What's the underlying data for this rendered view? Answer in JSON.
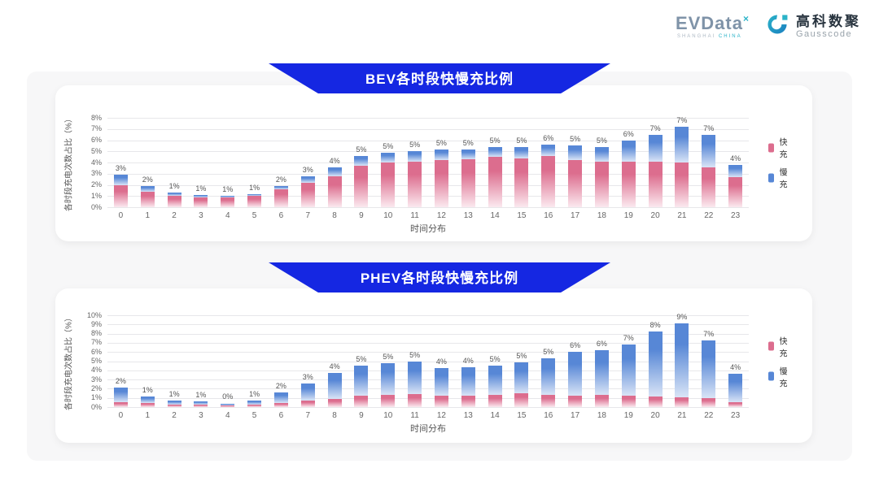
{
  "header": {
    "evdata": {
      "wordmark": "EVData",
      "sup": "×",
      "tagline_left": "SHANGHAI ",
      "tagline_right": "CHINA"
    },
    "gausscode": {
      "cn": "高科数聚",
      "en": "Gausscode"
    }
  },
  "colors": {
    "banner_blue": "#1527e2",
    "fast_pink": "#dc6d8e",
    "slow_blue": "#5787d6",
    "logo_teal": "#2bb3c8",
    "panel_gray": "#f7f7f8"
  },
  "chart_data": [
    {
      "type": "bar",
      "stacked": true,
      "title": "BEV各时段快慢充比例",
      "xlabel": "时间分布",
      "ylabel": "各时段充电次数占比（%）",
      "ylim": [
        0,
        8
      ],
      "ytick_step": 1,
      "grid": true,
      "legend_position": "right",
      "categories": [
        "0",
        "1",
        "2",
        "3",
        "4",
        "5",
        "6",
        "7",
        "8",
        "9",
        "10",
        "11",
        "12",
        "13",
        "14",
        "15",
        "16",
        "17",
        "18",
        "19",
        "20",
        "21",
        "22",
        "23"
      ],
      "series": [
        {
          "name": "快充",
          "color": "#dc6d8e",
          "color_faded": "#fbe9ef",
          "values": [
            2.0,
            1.4,
            1.0,
            0.9,
            0.9,
            1.0,
            1.6,
            2.2,
            2.8,
            3.7,
            4.0,
            4.1,
            4.2,
            4.3,
            4.5,
            4.4,
            4.6,
            4.2,
            4.1,
            4.1,
            4.1,
            4.0,
            3.6,
            2.7
          ]
        },
        {
          "name": "慢充",
          "color": "#5787d6",
          "color_faded": "#d9e4f6",
          "values": [
            0.9,
            0.5,
            0.3,
            0.2,
            0.1,
            0.2,
            0.3,
            0.6,
            0.8,
            0.9,
            0.9,
            0.9,
            1.0,
            0.9,
            0.9,
            1.0,
            1.0,
            1.3,
            1.3,
            1.9,
            2.4,
            3.2,
            2.9,
            1.1
          ]
        }
      ],
      "total_labels": [
        "3%",
        "2%",
        "1%",
        "1%",
        "1%",
        "1%",
        "2%",
        "3%",
        "4%",
        "5%",
        "5%",
        "5%",
        "5%",
        "5%",
        "5%",
        "5%",
        "6%",
        "5%",
        "5%",
        "6%",
        "7%",
        "7%",
        "7%",
        "4%"
      ]
    },
    {
      "type": "bar",
      "stacked": true,
      "title": "PHEV各时段快慢充比例",
      "xlabel": "时间分布",
      "ylabel": "各时段充电次数占比（%）",
      "ylim": [
        0,
        10
      ],
      "ytick_step": 1,
      "grid": true,
      "legend_position": "right",
      "categories": [
        "0",
        "1",
        "2",
        "3",
        "4",
        "5",
        "6",
        "7",
        "8",
        "9",
        "10",
        "11",
        "12",
        "13",
        "14",
        "15",
        "16",
        "17",
        "18",
        "19",
        "20",
        "21",
        "22",
        "23"
      ],
      "series": [
        {
          "name": "快充",
          "color": "#dc6d8e",
          "color_faded": "#fbe9ef",
          "values": [
            0.5,
            0.4,
            0.3,
            0.25,
            0.2,
            0.3,
            0.45,
            0.7,
            0.9,
            1.2,
            1.3,
            1.4,
            1.25,
            1.2,
            1.3,
            1.5,
            1.3,
            1.25,
            1.3,
            1.25,
            1.15,
            1.05,
            1.0,
            0.5
          ]
        },
        {
          "name": "慢充",
          "color": "#5787d6",
          "color_faded": "#d9e4f6",
          "values": [
            1.6,
            0.75,
            0.45,
            0.35,
            0.2,
            0.45,
            1.15,
            1.9,
            2.8,
            3.3,
            3.5,
            3.6,
            3.0,
            3.15,
            3.2,
            3.35,
            4.0,
            4.75,
            4.9,
            5.55,
            7.05,
            8.05,
            6.3,
            3.1
          ]
        }
      ],
      "total_labels": [
        "2%",
        "1%",
        "1%",
        "1%",
        "0%",
        "1%",
        "2%",
        "3%",
        "4%",
        "5%",
        "5%",
        "5%",
        "4%",
        "4%",
        "5%",
        "5%",
        "5%",
        "6%",
        "6%",
        "7%",
        "8%",
        "9%",
        "7%",
        "4%"
      ]
    }
  ]
}
